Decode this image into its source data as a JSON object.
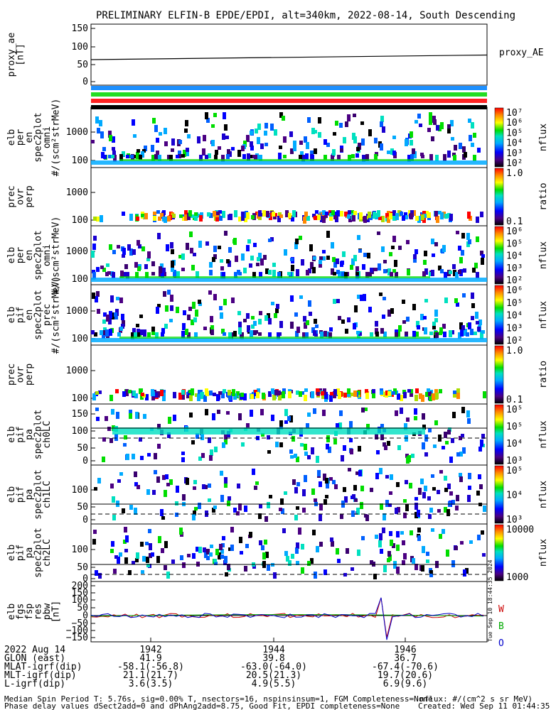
{
  "title": "PRELIMINARY ELFIN-B EPDE/EPDI, alt=340km, 2022-08-14, South Descending",
  "chart_data": [
    {
      "type": "line",
      "ylabel": "proxy_ae\n[nT]",
      "yticks": [
        "150",
        "100",
        "50",
        "0"
      ],
      "ylim": [
        0,
        150
      ],
      "series": [
        {
          "name": "proxy_AE",
          "x": [
            0,
            1
          ],
          "y": [
            62,
            75
          ]
        }
      ]
    },
    {
      "type": "heatmap",
      "ylabel": "elb\nper\nen\nspec2plot\nomni\n#/(scm²strMeV)",
      "yticks": [
        "1000",
        "100"
      ],
      "colorbar": {
        "label": "nflux",
        "ticks": [
          "10⁷",
          "10⁶",
          "10⁵",
          "10⁴",
          "10³",
          "10²"
        ]
      }
    },
    {
      "type": "heatmap",
      "ylabel": "prec\novr\nperp",
      "yticks": [
        "1000",
        "100"
      ],
      "colorbar": {
        "label": "ratio",
        "ticks": [
          "1.0",
          "0.1"
        ]
      }
    },
    {
      "type": "heatmap",
      "ylabel": "elb\nper\nen\nspec2plot\nomni\n#/(scm²strMeV)",
      "yticks": [
        "1000",
        "100"
      ],
      "colorbar": {
        "label": "nflux",
        "ticks": [
          "10⁶",
          "10⁵",
          "10⁴",
          "10³",
          "10²"
        ]
      }
    },
    {
      "type": "heatmap",
      "ylabel": "elb\npif\nen\nspec2plot\nprec\n#/(scm²strMeV)",
      "yticks": [
        "1000",
        "100"
      ],
      "colorbar": {
        "label": "nflux",
        "ticks": [
          "10⁶",
          "10⁵",
          "10⁴",
          "10³",
          "10²"
        ]
      }
    },
    {
      "type": "heatmap",
      "ylabel": "prec\novr\nperp",
      "yticks": [
        "1000",
        "100"
      ],
      "colorbar": {
        "label": "ratio",
        "ticks": [
          "1.0",
          "0.1"
        ]
      }
    },
    {
      "type": "heatmap",
      "ylabel": "elb\npif\npa\nspec2plot\nch0LC",
      "yticks": [
        "150",
        "100",
        "50",
        "0"
      ],
      "colorbar": {
        "label": "nflux",
        "ticks": [
          "10⁵",
          "10⁵",
          "10⁴",
          "10³"
        ]
      }
    },
    {
      "type": "heatmap",
      "ylabel": "elb\npif\npa\nspec2plot\nch1LC",
      "yticks": [
        "100",
        "50",
        "0"
      ],
      "colorbar": {
        "label": "nflux",
        "ticks": [
          "10⁵",
          "10⁴",
          "10³"
        ]
      }
    },
    {
      "type": "heatmap",
      "ylabel": "elb\npif\npa\nspec2plot\nch2LC",
      "yticks": [
        "100",
        "50",
        "0"
      ],
      "colorbar": {
        "label": "nflux",
        "ticks": [
          "10000",
          "1000"
        ]
      }
    },
    {
      "type": "line",
      "ylabel": "elb\nfgs\nfsp\nres\npbw\n[nT]",
      "yticks": [
        "200",
        "150",
        "100",
        "50",
        "0",
        "−50",
        "−100",
        "−150"
      ],
      "ylim": [
        -150,
        200
      ],
      "series": [
        {
          "name": "W",
          "color": "#cc0000"
        },
        {
          "name": "B",
          "color": "#00aa00"
        },
        {
          "name": "O",
          "color": "#0000cc"
        }
      ]
    }
  ],
  "xaxis": {
    "date": "2022 Aug 14",
    "rows": [
      {
        "label": "2022 Aug 14",
        "values": [
          "1942",
          "1944",
          "1946"
        ]
      },
      {
        "label": "GLON (east)",
        "values": [
          "41.9",
          "39.8",
          "36.7"
        ]
      },
      {
        "label": "MLAT-igrf(dip)",
        "values": [
          "-58.1(-56.8)",
          "-63.0(-64.0)",
          "-67.4(-70.6)"
        ]
      },
      {
        "label": "MLT-igrf(dip)",
        "values": [
          "21.1(21.7)",
          "20.5(21.3)",
          "19.7(20.6)"
        ]
      },
      {
        "label": "L-igrf(dip)",
        "values": [
          "3.6(3.5)",
          "4.9(5.5)",
          "6.9(9.6)"
        ]
      }
    ]
  },
  "footer": {
    "left1": "Median Spin Period T: 5.76s, sig=0.00% T, nsectors=16, nspinsinsum=1, FGM Completeness=None",
    "left2": "Phase delay values dSect2add=0 and dPhAng2add=8.75, Good Fit, EPDI completeness=None",
    "right1": "nflux: #/(cm^2 s sr MeV)",
    "right2": "Created: Wed Sep 11 01:44:35 2024",
    "vertical": "Tue Sep 10 18:44:35 2024"
  }
}
